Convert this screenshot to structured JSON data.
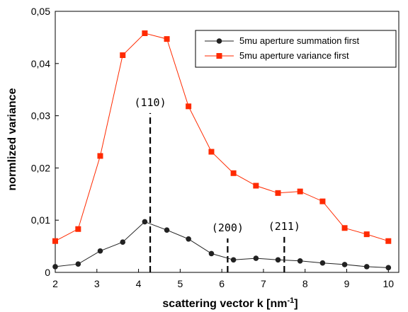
{
  "chart_data": {
    "type": "line",
    "title": "",
    "xlabel": "scattering vector k [nm",
    "xlabel_sup": "-1",
    "xlabel_end": "]",
    "ylabel": "normlized variance",
    "xlim": [
      2,
      10.25
    ],
    "ylim": [
      0,
      0.05
    ],
    "x_ticks": [
      {
        "value": 2,
        "label": "2"
      },
      {
        "value": 3,
        "label": "3"
      },
      {
        "value": 4,
        "label": "4"
      },
      {
        "value": 5,
        "label": "5"
      },
      {
        "value": 6,
        "label": "6"
      },
      {
        "value": 7,
        "label": "7"
      },
      {
        "value": 8,
        "label": "8"
      },
      {
        "value": 9,
        "label": "9"
      },
      {
        "value": 10,
        "label": "10"
      }
    ],
    "y_ticks": [
      {
        "value": 0,
        "label": "0"
      },
      {
        "value": 0.01,
        "label": "0,01"
      },
      {
        "value": 0.02,
        "label": "0,02"
      },
      {
        "value": 0.03,
        "label": "0,03"
      },
      {
        "value": 0.04,
        "label": "0,04"
      },
      {
        "value": 0.05,
        "label": "0,05"
      }
    ],
    "grid": false,
    "legend_position": "top-right",
    "series": [
      {
        "name": "5mu aperture summation first",
        "color": "#222222",
        "marker": "circle",
        "x": [
          2.0,
          2.55,
          3.08,
          3.62,
          4.15,
          4.68,
          5.2,
          5.75,
          6.28,
          6.82,
          7.35,
          7.88,
          8.42,
          8.95,
          9.48,
          10.0
        ],
        "y": [
          0.0011,
          0.0016,
          0.0041,
          0.0058,
          0.0097,
          0.0081,
          0.0064,
          0.0036,
          0.0024,
          0.0027,
          0.0024,
          0.0022,
          0.0018,
          0.0015,
          0.0011,
          0.0009
        ]
      },
      {
        "name": "5mu aperture variance first",
        "color": "#ff2a00",
        "marker": "square",
        "x": [
          2.0,
          2.55,
          3.08,
          3.62,
          4.15,
          4.68,
          5.2,
          5.75,
          6.28,
          6.82,
          7.35,
          7.88,
          8.42,
          8.95,
          9.48,
          10.0
        ],
        "y": [
          0.006,
          0.0083,
          0.0223,
          0.0416,
          0.0458,
          0.0447,
          0.0318,
          0.0231,
          0.019,
          0.0166,
          0.0152,
          0.0155,
          0.0136,
          0.0085,
          0.0073,
          0.006
        ]
      }
    ],
    "annotations": [
      {
        "label": "(110)",
        "x": 4.28,
        "y_top": 0.0305
      },
      {
        "label": "(200)",
        "x": 6.14,
        "y_top": 0.0065
      },
      {
        "label": "(211)",
        "x": 7.5,
        "y_top": 0.0068
      }
    ]
  }
}
